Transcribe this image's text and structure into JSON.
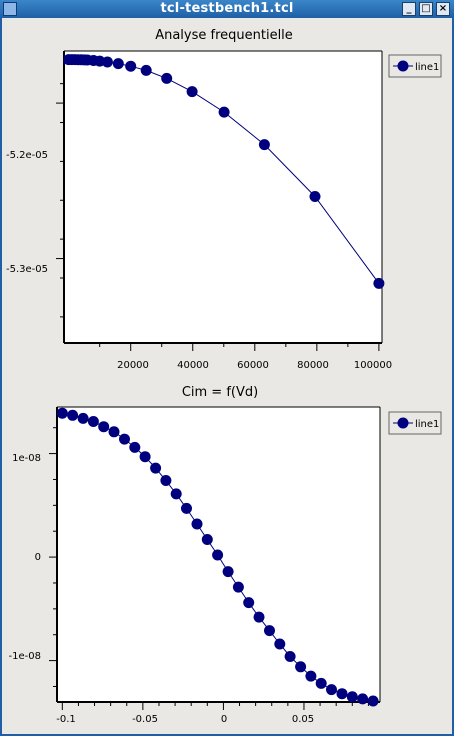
{
  "window": {
    "title": "tcl-testbench1.tcl",
    "buttons": [
      "_",
      "□",
      "×"
    ]
  },
  "charts": [
    {
      "title": "Analyse frequentielle",
      "legend": "line1",
      "yticks": [
        "-5.2e-05",
        "-5.3e-05"
      ],
      "xticks": [
        "20000",
        "40000",
        "60000",
        "80000",
        "100000"
      ]
    },
    {
      "title": "Cim = f(Vd)",
      "legend": "line1",
      "yticks": [
        "1e-08",
        "0",
        "-1e-08"
      ],
      "xticks": [
        "-0.1",
        "-0.05",
        "0",
        "0.05"
      ]
    }
  ],
  "chart_data": [
    {
      "type": "line",
      "title": "Analyse frequentielle",
      "xlabel": "",
      "ylabel": "",
      "xlim": [
        -1500,
        101000
      ],
      "ylim": [
        -5.3543e-05,
        -5.1665e-05
      ],
      "legend": "top-right",
      "marker_color": "#00007f",
      "series": [
        {
          "name": "line1",
          "x": [
            0,
            1000,
            2000,
            3000,
            4000,
            5000,
            6000,
            8000,
            10000,
            12500,
            16000,
            20000,
            25000,
            31600,
            39800,
            50100,
            63100,
            79400,
            100000
          ],
          "y": [
            -5.172e-05,
            -5.172e-05,
            -5.172e-05,
            -5.1721e-05,
            -5.1721e-05,
            -5.1722e-05,
            -5.1723e-05,
            -5.1726e-05,
            -5.173e-05,
            -5.1736e-05,
            -5.1746e-05,
            -5.1763e-05,
            -5.179e-05,
            -5.1841e-05,
            -5.1926e-05,
            -5.2058e-05,
            -5.2267e-05,
            -5.2601e-05,
            -5.316e-05
          ]
        }
      ]
    },
    {
      "type": "line",
      "title": "Cim = f(Vd)",
      "xlabel": "",
      "ylabel": "",
      "xlim": [
        -0.1033,
        0.0972
      ],
      "ylim": [
        -1.4e-08,
        1.45e-08
      ],
      "legend": "top-right",
      "marker_color": "#00007f",
      "series": [
        {
          "name": "line1",
          "x": [
            -0.1,
            -0.0936,
            -0.0871,
            -0.0807,
            -0.0743,
            -0.0679,
            -0.0614,
            -0.055,
            -0.0486,
            -0.0421,
            -0.0357,
            -0.0293,
            -0.0229,
            -0.0164,
            -0.01,
            -0.0036,
            0.0029,
            0.0093,
            0.0157,
            0.0221,
            0.0286,
            0.035,
            0.0414,
            0.0479,
            0.0543,
            0.0607,
            0.0671,
            0.0736,
            0.08,
            0.0864,
            0.0929
          ],
          "y": [
            1.39e-08,
            1.37e-08,
            1.34e-08,
            1.31e-08,
            1.26e-08,
            1.21e-08,
            1.14e-08,
            1.06e-08,
            9.7e-09,
            8.6e-09,
            7.4e-09,
            6.1e-09,
            4.7e-09,
            3.2e-09,
            1.7e-09,
            2e-10,
            -1.4e-09,
            -2.9e-09,
            -4.4e-09,
            -5.8e-09,
            -7.1e-09,
            -8.4e-09,
            -9.6e-09,
            -1.06e-08,
            -1.15e-08,
            -1.22e-08,
            -1.28e-08,
            -1.32e-08,
            -1.35e-08,
            -1.37e-08,
            -1.39e-08
          ]
        }
      ]
    }
  ]
}
